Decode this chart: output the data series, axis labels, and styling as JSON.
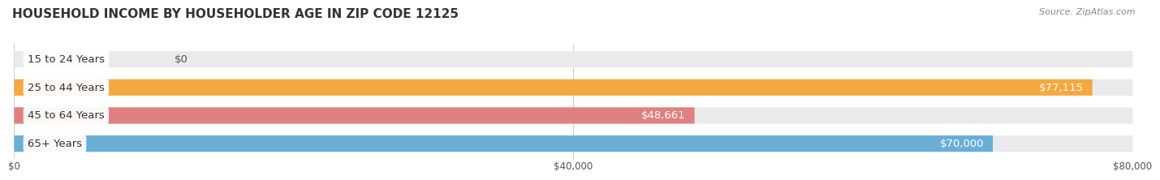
{
  "title": "HOUSEHOLD INCOME BY HOUSEHOLDER AGE IN ZIP CODE 12125",
  "source": "Source: ZipAtlas.com",
  "categories": [
    "15 to 24 Years",
    "25 to 44 Years",
    "45 to 64 Years",
    "65+ Years"
  ],
  "values": [
    0,
    77115,
    48661,
    70000
  ],
  "bar_colors": [
    "#f4a0b8",
    "#f5a83e",
    "#e08080",
    "#6aaed6"
  ],
  "value_labels": [
    "$0",
    "$77,115",
    "$48,661",
    "$70,000"
  ],
  "value_label_inside": [
    false,
    true,
    true,
    true
  ],
  "xlim_max": 80000,
  "xticks": [
    0,
    40000,
    80000
  ],
  "xticklabels": [
    "$0",
    "$40,000",
    "$80,000"
  ],
  "background_color": "#ffffff",
  "bg_bar_color": "#eaeaea",
  "title_fontsize": 11,
  "bar_height": 0.58,
  "bar_gap": 0.18,
  "label_fontsize": 9.5,
  "value_fontsize": 9.5,
  "source_fontsize": 8
}
